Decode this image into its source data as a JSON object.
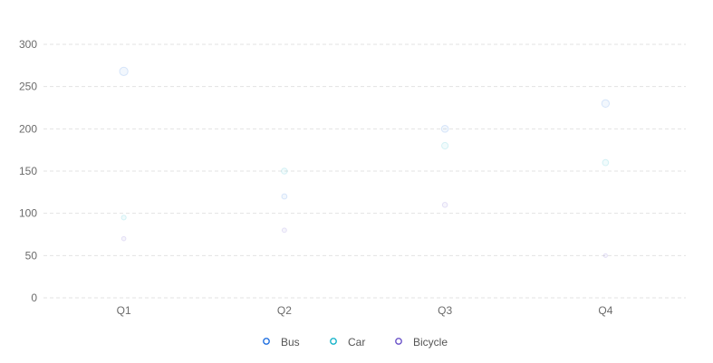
{
  "chart_data": {
    "type": "scatter",
    "categories": [
      "Q1",
      "Q2",
      "Q3",
      "Q4"
    ],
    "ylim": [
      0,
      300
    ],
    "yticks": [
      0,
      50,
      100,
      150,
      200,
      250,
      300
    ],
    "grid": true,
    "legend_position": "bottom",
    "series": [
      {
        "name": "Bus",
        "color": "#1f6fe0",
        "values": [
          268,
          120,
          200,
          230
        ]
      },
      {
        "name": "Car",
        "color": "#16b3c9",
        "values": [
          95,
          150,
          180,
          160
        ]
      },
      {
        "name": "Bicycle",
        "color": "#6a52c8",
        "values": [
          70,
          80,
          110,
          50
        ]
      }
    ]
  }
}
